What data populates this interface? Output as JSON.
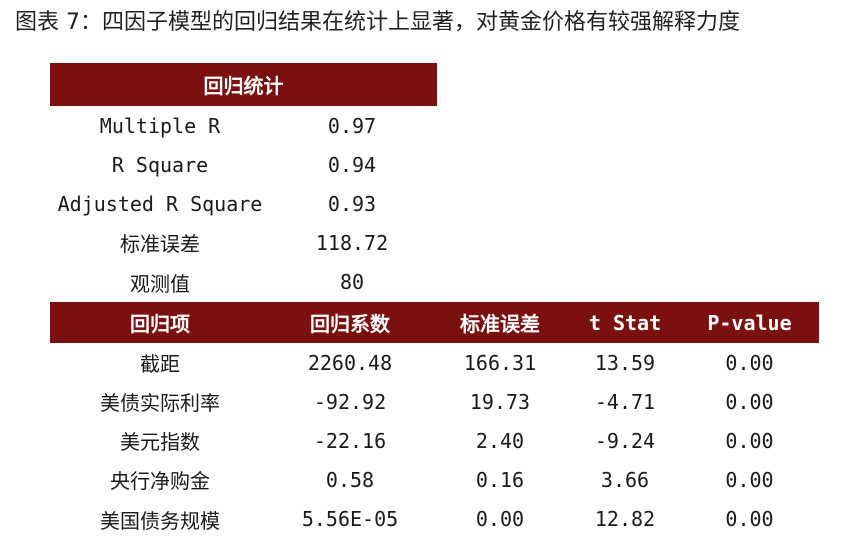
{
  "title": "图表 7：四因子模型的回归结果在统计上显著，对黄金价格有较强解释力度",
  "colors": {
    "header_bg": "#7a1010",
    "header_text": "#ffffff",
    "body_text": "#1a1a1a"
  },
  "regression_stats": {
    "header": "回归统计",
    "rows": [
      {
        "label": "Multiple R",
        "value": "0.97"
      },
      {
        "label": "R Square",
        "value": "0.94"
      },
      {
        "label": "Adjusted R Square",
        "value": "0.93"
      },
      {
        "label": "标准误差",
        "value": "118.72"
      },
      {
        "label": "观测值",
        "value": "80"
      }
    ]
  },
  "coefficients": {
    "headers": [
      "回归项",
      "回归系数",
      "标准误差",
      "t Stat",
      "P-value"
    ],
    "rows": [
      [
        "截距",
        "2260.48",
        "166.31",
        "13.59",
        "0.00"
      ],
      [
        "美债实际利率",
        "-92.92",
        "19.73",
        "-4.71",
        "0.00"
      ],
      [
        "美元指数",
        "-22.16",
        "2.40",
        "-9.24",
        "0.00"
      ],
      [
        "央行净购金",
        "0.58",
        "0.16",
        "3.66",
        "0.00"
      ],
      [
        "美国债务规模",
        "5.56E-05",
        "0.00",
        "12.82",
        "0.00"
      ]
    ]
  }
}
